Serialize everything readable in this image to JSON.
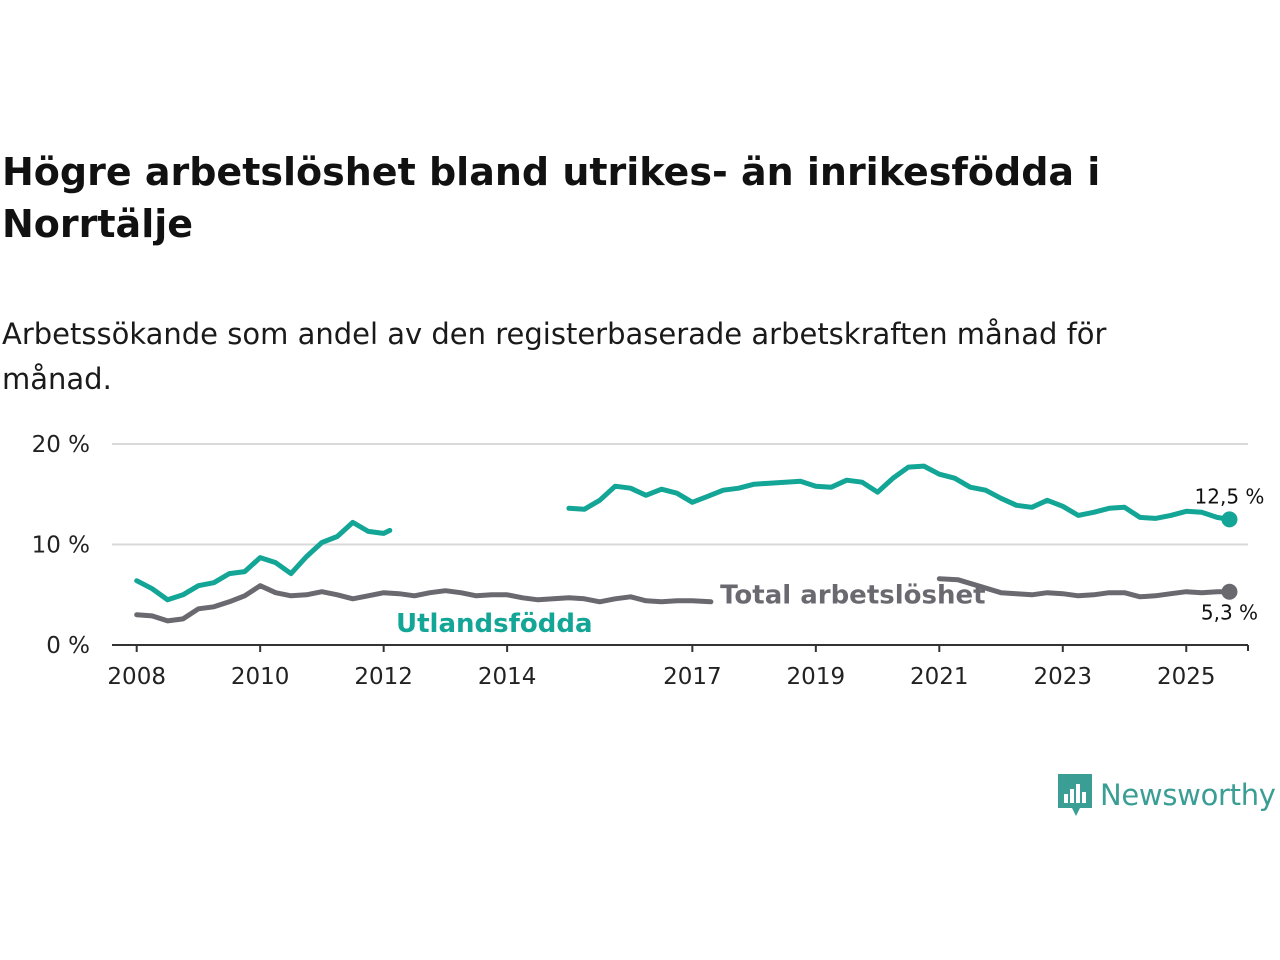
{
  "title": "Högre arbetslöshet bland utrikes- än inrikesfödda i Norrtälje",
  "subtitle": "Arbetssökande som andel av den registerbaserade arbetskraften månad för månad.",
  "brand": {
    "name": "Newsworthy",
    "icon": "bar-chart-speech-bubble-icon"
  },
  "colors": {
    "utlandsfodda": "#13a596",
    "total": "#6b6970",
    "grid": "#d9d9d9",
    "axis": "#333333",
    "brand": "#3a9e94"
  },
  "chart_data": {
    "type": "line",
    "title": "Högre arbetslöshet bland utrikes- än inrikesfödda i Norrtälje",
    "xlabel": "",
    "ylabel": "",
    "xlim": [
      2007.6,
      2026.0
    ],
    "ylim": [
      0,
      20
    ],
    "y_ticks": [
      0,
      10,
      20
    ],
    "y_tick_labels": [
      "0 %",
      "10 %",
      "20 %"
    ],
    "x_ticks": [
      2008,
      2010,
      2012,
      2014,
      2017,
      2019,
      2021,
      2023,
      2025
    ],
    "x_tick_labels": [
      "2008",
      "2010",
      "2012",
      "2014",
      "2017",
      "2019",
      "2021",
      "2023",
      "2025"
    ],
    "grid": true,
    "series": [
      {
        "name": "Utlandsfödda",
        "label": "Utlandsfödda",
        "end_label": "12,5 %",
        "x": [
          2008.0,
          2008.25,
          2008.5,
          2008.75,
          2009.0,
          2009.25,
          2009.5,
          2009.75,
          2010.0,
          2010.25,
          2010.5,
          2010.75,
          2011.0,
          2011.25,
          2011.5,
          2011.75,
          2012.0,
          2012.1,
          2015.0,
          2015.25,
          2015.5,
          2015.75,
          2016.0,
          2016.25,
          2016.5,
          2016.75,
          2017.0,
          2017.25,
          2017.5,
          2017.75,
          2018.0,
          2018.25,
          2018.5,
          2018.75,
          2019.0,
          2019.25,
          2019.5,
          2019.75,
          2020.0,
          2020.25,
          2020.5,
          2020.75,
          2021.0,
          2021.25,
          2021.5,
          2021.75,
          2022.0,
          2022.25,
          2022.5,
          2022.75,
          2023.0,
          2023.25,
          2023.5,
          2023.75,
          2024.0,
          2024.25,
          2024.5,
          2024.75,
          2025.0,
          2025.25,
          2025.5,
          2025.7
        ],
        "values": [
          6.4,
          5.6,
          4.5,
          5.0,
          5.9,
          6.2,
          7.1,
          7.3,
          8.7,
          8.2,
          7.1,
          8.8,
          10.2,
          10.8,
          12.2,
          11.3,
          11.1,
          11.4,
          13.6,
          13.5,
          14.4,
          15.8,
          15.6,
          14.9,
          15.5,
          15.1,
          14.2,
          14.8,
          15.4,
          15.6,
          16.0,
          16.1,
          16.2,
          16.3,
          15.8,
          15.7,
          16.4,
          16.2,
          15.2,
          16.6,
          17.7,
          17.8,
          17.0,
          16.6,
          15.7,
          15.4,
          14.6,
          13.9,
          13.7,
          14.4,
          13.8,
          12.9,
          13.2,
          13.6,
          13.7,
          12.7,
          12.6,
          12.9,
          13.3,
          13.2,
          12.7,
          12.5
        ]
      },
      {
        "name": "Total arbetslöshet",
        "label": "Total arbetslöshet",
        "end_label": "5,3 %",
        "x": [
          2008.0,
          2008.25,
          2008.5,
          2008.75,
          2009.0,
          2009.25,
          2009.5,
          2009.75,
          2010.0,
          2010.25,
          2010.5,
          2010.75,
          2011.0,
          2011.25,
          2011.5,
          2011.75,
          2012.0,
          2012.25,
          2012.5,
          2012.75,
          2013.0,
          2013.25,
          2013.5,
          2013.75,
          2014.0,
          2014.25,
          2014.5,
          2014.75,
          2015.0,
          2015.25,
          2015.5,
          2015.75,
          2016.0,
          2016.25,
          2016.5,
          2016.75,
          2017.0,
          2017.3,
          2021.0,
          2021.3,
          2022.0,
          2022.25,
          2022.5,
          2022.75,
          2023.0,
          2023.25,
          2023.5,
          2023.75,
          2024.0,
          2024.25,
          2024.5,
          2024.75,
          2025.0,
          2025.25,
          2025.5,
          2025.7
        ],
        "values": [
          3.0,
          2.9,
          2.4,
          2.6,
          3.6,
          3.8,
          4.3,
          4.9,
          5.9,
          5.2,
          4.9,
          5.0,
          5.3,
          5.0,
          4.6,
          4.9,
          5.2,
          5.1,
          4.9,
          5.2,
          5.4,
          5.2,
          4.9,
          5.0,
          5.0,
          4.7,
          4.5,
          4.6,
          4.7,
          4.6,
          4.3,
          4.6,
          4.8,
          4.4,
          4.3,
          4.4,
          4.4,
          4.3,
          6.6,
          6.5,
          5.2,
          5.1,
          5.0,
          5.2,
          5.1,
          4.9,
          5.0,
          5.2,
          5.2,
          4.8,
          4.9,
          5.1,
          5.3,
          5.2,
          5.3,
          5.3
        ]
      }
    ]
  }
}
